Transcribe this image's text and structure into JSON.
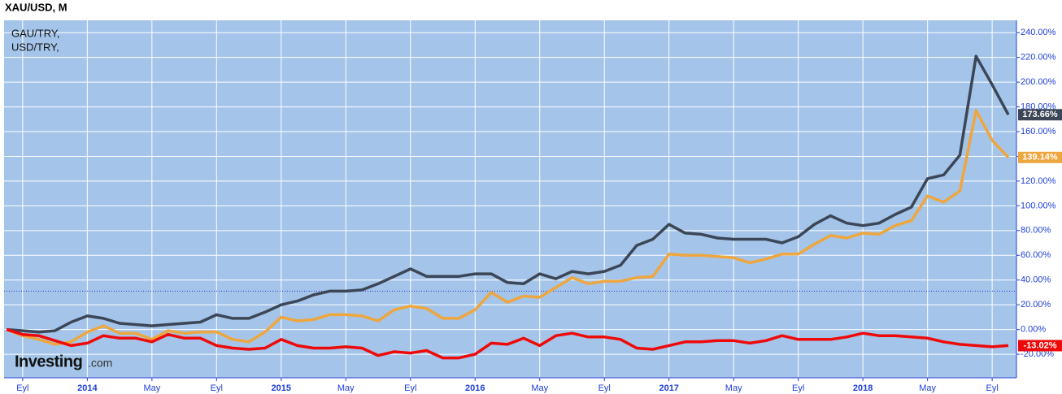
{
  "chart_data": {
    "type": "line",
    "title": "XAU/USD, M",
    "watermark_brand": "Investing",
    "watermark_domain": ".com",
    "categories": [
      null,
      "Eyl",
      null,
      null,
      null,
      "2014",
      null,
      null,
      null,
      "May",
      null,
      null,
      null,
      "Eyl",
      null,
      null,
      null,
      "2015",
      null,
      null,
      null,
      "May",
      null,
      null,
      null,
      "Eyl",
      null,
      null,
      null,
      "2016",
      null,
      null,
      null,
      "May",
      null,
      null,
      null,
      "Eyl",
      null,
      null,
      null,
      "2017",
      null,
      null,
      null,
      "May",
      null,
      null,
      null,
      "Eyl",
      null,
      null,
      null,
      "2018",
      null,
      null,
      null,
      "May",
      null,
      null,
      null,
      "Eyl",
      null
    ],
    "series": [
      {
        "name": "GAU/TRY,",
        "color": "#3b4656",
        "values": [
          0,
          -1,
          -2,
          -1,
          6,
          11,
          9,
          5,
          4,
          3,
          4,
          5,
          6,
          12,
          9,
          9,
          14,
          20,
          23,
          28,
          31,
          31,
          32,
          37,
          43,
          49,
          43,
          43,
          43,
          45,
          45,
          38,
          37,
          45,
          41,
          47,
          45,
          47,
          52,
          68,
          73,
          85,
          78,
          77,
          74,
          73,
          73,
          73,
          70,
          75,
          85,
          92,
          86,
          84,
          86,
          93,
          99,
          122,
          125,
          141,
          221,
          198,
          173.66
        ],
        "value_labels": [
          null,
          null,
          null,
          null,
          null,
          null,
          null,
          null,
          null,
          null,
          null,
          null,
          null,
          null,
          null,
          null,
          null,
          null,
          null,
          null,
          null,
          null,
          null,
          null,
          null,
          null,
          null,
          null,
          null,
          null,
          null,
          null,
          null,
          null,
          null,
          null,
          null,
          null,
          null,
          null,
          null,
          null,
          null,
          null,
          null,
          null,
          null,
          null,
          null,
          null,
          null,
          null,
          null,
          null,
          null,
          null,
          null,
          null,
          null,
          null,
          null,
          null,
          "173.66%"
        ]
      },
      {
        "name": "USD/TRY,",
        "color": "#eea63f",
        "values": [
          0,
          -5,
          -8,
          -12,
          -10,
          -2,
          3,
          -3,
          -3,
          -8,
          -1,
          -3,
          -2,
          -2,
          -8,
          -10,
          -2,
          10,
          7,
          8,
          12,
          12,
          11,
          7,
          16,
          19,
          17,
          9,
          9,
          16,
          30,
          22,
          27,
          26,
          34,
          42,
          37,
          39,
          39,
          42,
          43,
          61,
          60,
          60,
          59,
          58,
          54,
          57,
          61,
          61,
          69,
          76,
          74,
          78,
          77,
          84,
          88,
          108,
          103,
          112,
          177,
          153,
          139.14
        ],
        "value_labels": [
          null,
          null,
          null,
          null,
          null,
          null,
          null,
          null,
          null,
          null,
          null,
          null,
          null,
          null,
          null,
          null,
          null,
          null,
          null,
          null,
          null,
          null,
          null,
          null,
          null,
          null,
          null,
          null,
          null,
          null,
          null,
          null,
          null,
          null,
          null,
          null,
          null,
          null,
          null,
          null,
          null,
          null,
          null,
          null,
          null,
          null,
          null,
          null,
          null,
          null,
          null,
          null,
          null,
          null,
          null,
          null,
          null,
          null,
          null,
          null,
          null,
          null,
          "139.14%"
        ]
      },
      {
        "color": "#ee0a0a",
        "values": [
          0,
          -4,
          -5,
          -9,
          -13,
          -11,
          -5,
          -7,
          -7,
          -10,
          -4,
          -7,
          -7,
          -13,
          -15,
          -16,
          -15,
          -8,
          -13,
          -15,
          -15,
          -14,
          -15,
          -21,
          -18,
          -19,
          -17,
          -23,
          -23,
          -20,
          -11,
          -12,
          -7,
          -13,
          -5,
          -3,
          -6,
          -6,
          -8,
          -15,
          -16,
          -13,
          -10,
          -10,
          -9,
          -9,
          -11,
          -9,
          -5,
          -8,
          -8,
          -8,
          -6,
          -3,
          -5,
          -5,
          -6,
          -7,
          -10,
          -12,
          -13,
          -14,
          -13.02
        ],
        "value_labels": [
          null,
          null,
          null,
          null,
          null,
          null,
          null,
          null,
          null,
          null,
          null,
          null,
          null,
          null,
          null,
          null,
          null,
          null,
          null,
          null,
          null,
          null,
          null,
          null,
          null,
          null,
          null,
          null,
          null,
          null,
          null,
          null,
          null,
          null,
          null,
          null,
          null,
          null,
          null,
          null,
          null,
          null,
          null,
          null,
          null,
          null,
          null,
          null,
          null,
          null,
          null,
          null,
          null,
          null,
          null,
          null,
          null,
          null,
          null,
          null,
          null,
          null,
          "-13.02%"
        ]
      }
    ],
    "reference_line": 31,
    "ylim": [
      -39,
      250
    ],
    "yticks": [
      {
        "value": -20,
        "label": "-20.00%"
      },
      {
        "value": 0,
        "label": "0.00%"
      },
      {
        "value": 20,
        "label": "20.00%"
      },
      {
        "value": 40,
        "label": "40.00%"
      },
      {
        "value": 60,
        "label": "60.00%"
      },
      {
        "value": 80,
        "label": "80.00%"
      },
      {
        "value": 100,
        "label": "100.00%"
      },
      {
        "value": 120,
        "label": "120.00%"
      },
      {
        "value": 140,
        "label": "140.00%"
      },
      {
        "value": 160,
        "label": "160.00%"
      },
      {
        "value": 180,
        "label": "180.00%"
      },
      {
        "value": 200,
        "label": "200.00%"
      },
      {
        "value": 220,
        "label": "220.00%"
      },
      {
        "value": 240,
        "label": "240.00%"
      }
    ],
    "grid": true
  }
}
